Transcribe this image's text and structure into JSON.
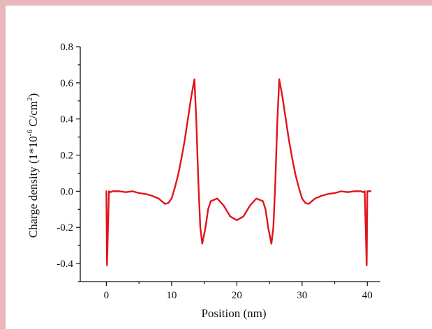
{
  "chart_data": {
    "type": "line",
    "title": "",
    "xlabel": "Position (nm)",
    "ylabel": {
      "prefix": "Charge density (1*10",
      "exp1": "-6",
      "mid": " C/cm",
      "exp2": "2",
      "suffix": ")"
    },
    "xlim": [
      -4,
      42
    ],
    "ylim": [
      -0.5,
      0.8
    ],
    "xticks": [
      0,
      10,
      20,
      30,
      40
    ],
    "xtick_labels": [
      "0",
      "10",
      "20",
      "30",
      "40"
    ],
    "yticks": [
      -0.4,
      -0.2,
      0.0,
      0.2,
      0.4,
      0.6,
      0.8
    ],
    "ytick_labels": [
      "-0.4",
      "-0.2",
      "0.0",
      "0.2",
      "0.4",
      "0.6",
      "0.8"
    ],
    "grid": false,
    "series": [
      {
        "color": "#e0151b",
        "x": [
          0.0,
          0.1,
          0.25,
          0.4,
          0.6,
          1,
          2,
          3,
          4,
          5,
          6,
          7,
          8,
          8.5,
          9,
          9.5,
          10,
          10.5,
          11,
          11.5,
          12,
          12.5,
          13,
          13.5,
          13.8,
          14.1,
          14.4,
          14.7,
          15.2,
          15.6,
          16,
          17,
          18,
          19,
          20,
          21,
          22,
          23,
          24,
          24.4,
          24.8,
          25.3,
          25.6,
          25.9,
          26.2,
          26.5,
          27,
          27.5,
          28,
          28.5,
          29,
          29.5,
          30,
          30.5,
          31,
          31.5,
          32,
          33,
          34,
          35,
          36,
          37,
          38,
          39,
          39.4,
          39.6,
          39.75,
          39.9,
          40.0,
          40.5
        ],
        "values": [
          0.0,
          -0.41,
          -0.2,
          0.0,
          -0.005,
          0.0,
          0.0,
          -0.005,
          0.0,
          -0.01,
          -0.015,
          -0.025,
          -0.04,
          -0.055,
          -0.07,
          -0.065,
          -0.04,
          0.02,
          0.09,
          0.18,
          0.28,
          0.4,
          0.52,
          0.62,
          0.38,
          0.05,
          -0.2,
          -0.29,
          -0.2,
          -0.1,
          -0.055,
          -0.04,
          -0.08,
          -0.14,
          -0.16,
          -0.14,
          -0.08,
          -0.04,
          -0.055,
          -0.1,
          -0.2,
          -0.29,
          -0.2,
          0.05,
          0.38,
          0.62,
          0.52,
          0.4,
          0.28,
          0.18,
          0.09,
          0.02,
          -0.04,
          -0.065,
          -0.07,
          -0.055,
          -0.04,
          -0.025,
          -0.015,
          -0.01,
          0.0,
          -0.005,
          0.0,
          0.0,
          -0.005,
          0.0,
          -0.2,
          -0.41,
          0.0,
          0.0
        ]
      }
    ]
  }
}
